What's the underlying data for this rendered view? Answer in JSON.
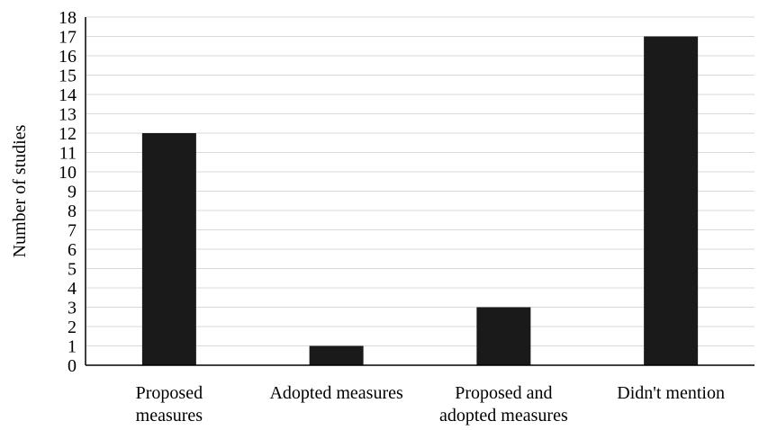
{
  "chart_data": {
    "type": "bar",
    "title": "",
    "xlabel": "",
    "ylabel": "Number of studies",
    "categories": [
      [
        "Proposed",
        "measures"
      ],
      [
        "Adopted measures"
      ],
      [
        "Proposed and",
        "adopted measures"
      ],
      [
        "Didn't mention"
      ]
    ],
    "values": [
      12,
      1,
      3,
      17
    ],
    "ylim": [
      0,
      18
    ],
    "ytick_step": 1,
    "grid": true,
    "legend": "none",
    "colors": {
      "bar": "#1a1a1a",
      "grid": "#d9d9d9",
      "axis": "#000000"
    }
  }
}
